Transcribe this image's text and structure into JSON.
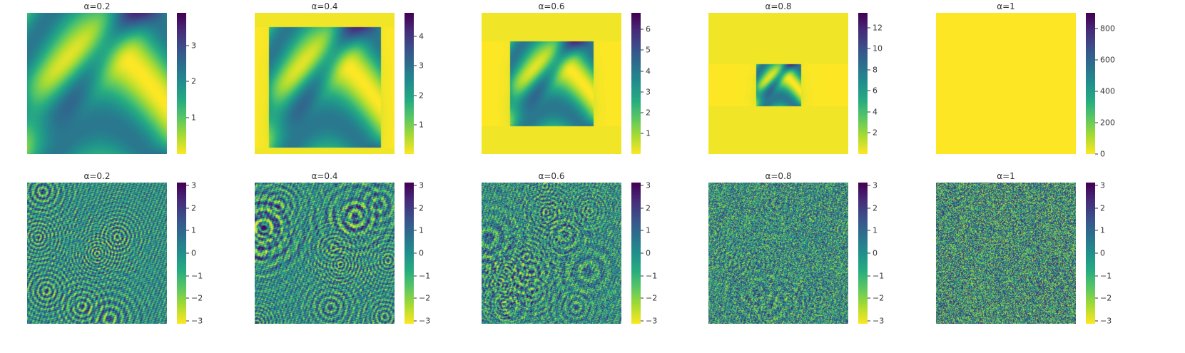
{
  "chart_data": [
    {
      "type": "heatmap",
      "title": "α=0.2",
      "colormap": "viridis_r",
      "colorbar": {
        "range": [
          0,
          3.9
        ],
        "ticks": [
          "1",
          "2",
          "3"
        ],
        "tick_values": [
          1,
          2,
          3
        ]
      }
    },
    {
      "type": "heatmap",
      "title": "α=0.4",
      "colormap": "viridis_r",
      "colorbar": {
        "range": [
          0,
          4.8
        ],
        "ticks": [
          "1",
          "2",
          "3",
          "4"
        ],
        "tick_values": [
          1,
          2,
          3,
          4
        ]
      }
    },
    {
      "type": "heatmap",
      "title": "α=0.6",
      "colormap": "viridis_r",
      "colorbar": {
        "range": [
          0,
          6.8
        ],
        "ticks": [
          "1",
          "2",
          "3",
          "4",
          "5",
          "6"
        ],
        "tick_values": [
          1,
          2,
          3,
          4,
          5,
          6
        ]
      }
    },
    {
      "type": "heatmap",
      "title": "α=0.8",
      "colormap": "viridis_r",
      "colorbar": {
        "range": [
          0,
          13.4
        ],
        "ticks": [
          "2",
          "4",
          "6",
          "8",
          "10",
          "12"
        ],
        "tick_values": [
          2,
          4,
          6,
          8,
          10,
          12
        ]
      }
    },
    {
      "type": "heatmap",
      "title": "α=1",
      "colormap": "viridis_r",
      "colorbar": {
        "range": [
          0,
          900
        ],
        "ticks": [
          "0",
          "200",
          "400",
          "600",
          "800"
        ],
        "tick_values": [
          0,
          200,
          400,
          600,
          800
        ]
      }
    },
    {
      "type": "heatmap",
      "title": "α=0.2",
      "colormap": "viridis_r",
      "colorbar": {
        "range": [
          -3.14,
          3.14
        ],
        "ticks": [
          "−3",
          "−2",
          "−1",
          "0",
          "1",
          "2",
          "3"
        ],
        "tick_values": [
          -3,
          -2,
          -1,
          0,
          1,
          2,
          3
        ]
      }
    },
    {
      "type": "heatmap",
      "title": "α=0.4",
      "colormap": "viridis_r",
      "colorbar": {
        "range": [
          -3.14,
          3.14
        ],
        "ticks": [
          "−3",
          "−2",
          "−1",
          "0",
          "1",
          "2",
          "3"
        ],
        "tick_values": [
          -3,
          -2,
          -1,
          0,
          1,
          2,
          3
        ]
      }
    },
    {
      "type": "heatmap",
      "title": "α=0.6",
      "colormap": "viridis_r",
      "colorbar": {
        "range": [
          -3.14,
          3.14
        ],
        "ticks": [
          "−3",
          "−2",
          "−1",
          "0",
          "1",
          "2",
          "3"
        ],
        "tick_values": [
          -3,
          -2,
          -1,
          0,
          1,
          2,
          3
        ]
      }
    },
    {
      "type": "heatmap",
      "title": "α=0.8",
      "colormap": "viridis_r",
      "colorbar": {
        "range": [
          -3.14,
          3.14
        ],
        "ticks": [
          "−3",
          "−2",
          "−1",
          "0",
          "1",
          "2",
          "3"
        ],
        "tick_values": [
          -3,
          -2,
          -1,
          0,
          1,
          2,
          3
        ]
      }
    },
    {
      "type": "heatmap",
      "title": "α=1",
      "colormap": "viridis_r",
      "colorbar": {
        "range": [
          -3.14,
          3.14
        ],
        "ticks": [
          "−3",
          "−2",
          "−1",
          "0",
          "1",
          "2",
          "3"
        ],
        "tick_values": [
          -3,
          -2,
          -1,
          0,
          1,
          2,
          3
        ]
      }
    }
  ]
}
